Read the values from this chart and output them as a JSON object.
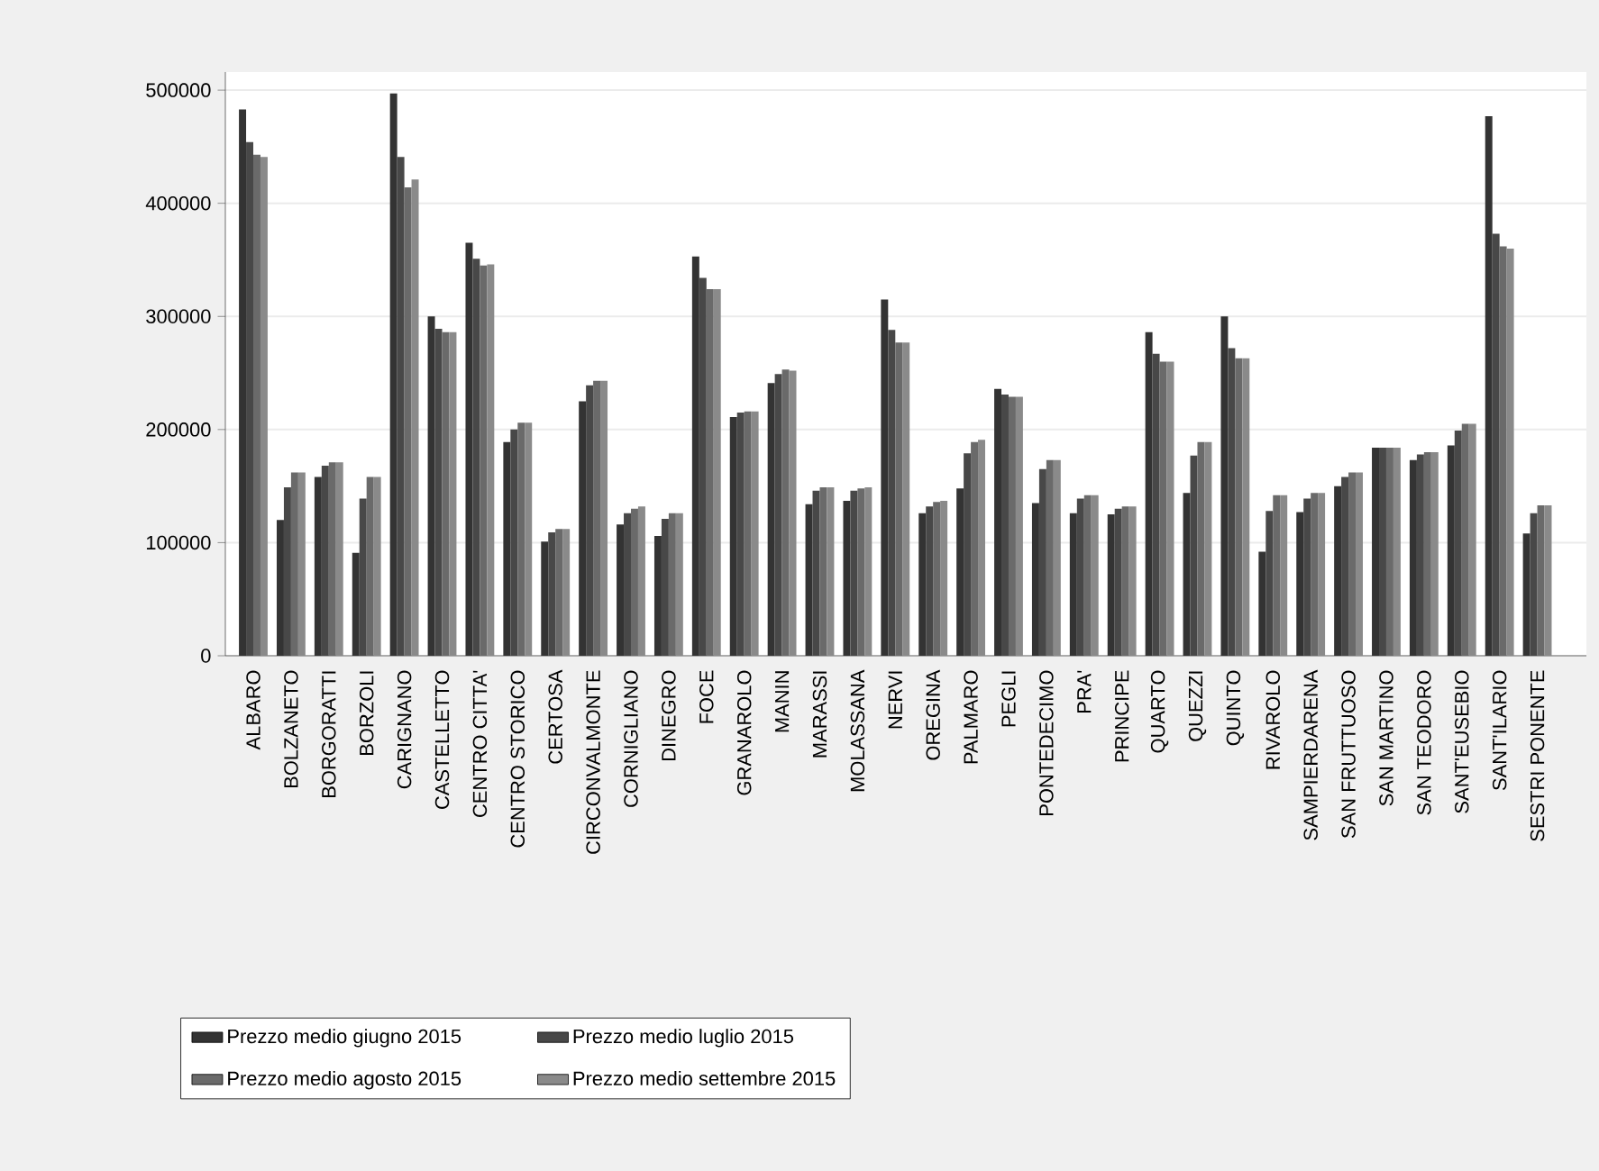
{
  "chart_data": {
    "type": "bar",
    "categories": [
      "ALBARO",
      "BOLZANETO",
      "BORGORATTI",
      "BORZOLI",
      "CARIGNANO",
      "CASTELLETTO",
      "CENTRO CITTA'",
      "CENTRO STORICO",
      "CERTOSA",
      "CIRCONVALMONTE",
      "CORNIGLIANO",
      "DINEGRO",
      "FOCE",
      "GRANAROLO",
      "MANIN",
      "MARASSI",
      "MOLASSANA",
      "NERVI",
      "OREGINA",
      "PALMARO",
      "PEGLI",
      "PONTEDECIMO",
      "PRA'",
      "PRINCIPE",
      "QUARTO",
      "QUEZZI",
      "QUINTO",
      "RIVAROLO",
      "SAMPIERDARENA",
      "SAN FRUTTUOSO",
      "SAN MARTINO",
      "SAN TEODORO",
      "SANT'EUSEBIO",
      "SANT'ILARIO",
      "SESTRI PONENTE"
    ],
    "series": [
      {
        "name": "Prezzo medio giugno 2015",
        "color": "#333333",
        "values": [
          483000,
          120000,
          158000,
          91000,
          497000,
          300000,
          365000,
          189000,
          101000,
          225000,
          116000,
          106000,
          353000,
          211000,
          241000,
          134000,
          137000,
          315000,
          126000,
          148000,
          236000,
          135000,
          126000,
          125000,
          286000,
          144000,
          300000,
          92000,
          127000,
          150000,
          184000,
          173000,
          186000,
          477000,
          108000
        ]
      },
      {
        "name": "Prezzo medio luglio 2015",
        "color": "#484848",
        "values": [
          454000,
          149000,
          168000,
          139000,
          441000,
          289000,
          351000,
          200000,
          109000,
          239000,
          126000,
          121000,
          334000,
          215000,
          249000,
          146000,
          146000,
          288000,
          132000,
          179000,
          231000,
          165000,
          139000,
          130000,
          267000,
          177000,
          272000,
          128000,
          139000,
          158000,
          184000,
          178000,
          199000,
          373000,
          126000
        ]
      },
      {
        "name": "Prezzo medio agosto 2015",
        "color": "#6a6a6a",
        "values": [
          443000,
          162000,
          171000,
          158000,
          414000,
          286000,
          345000,
          206000,
          112000,
          243000,
          130000,
          126000,
          324000,
          216000,
          253000,
          149000,
          148000,
          277000,
          136000,
          189000,
          229000,
          173000,
          142000,
          132000,
          260000,
          189000,
          263000,
          142000,
          144000,
          162000,
          184000,
          180000,
          205000,
          362000,
          133000
        ]
      },
      {
        "name": "Prezzo medio settembre 2015",
        "color": "#8a8a8a",
        "values": [
          441000,
          162000,
          171000,
          158000,
          421000,
          286000,
          346000,
          206000,
          112000,
          243000,
          132000,
          126000,
          324000,
          216000,
          252000,
          149000,
          149000,
          277000,
          137000,
          191000,
          229000,
          173000,
          142000,
          132000,
          260000,
          189000,
          263000,
          142000,
          144000,
          162000,
          184000,
          180000,
          205000,
          360000,
          133000
        ]
      }
    ],
    "ylim": [
      0,
      516000
    ],
    "yticks": [
      0,
      100000,
      200000,
      300000,
      400000,
      500000
    ],
    "grid": "y",
    "legend": "bottom"
  }
}
